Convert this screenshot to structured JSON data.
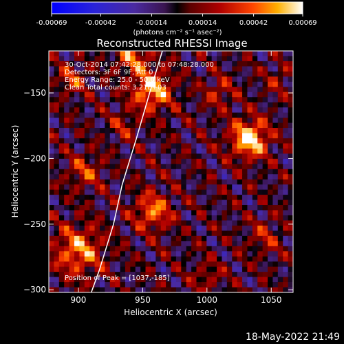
{
  "chart_data": {
    "type": "heatmap",
    "title": "Reconstructed RHESSI Image",
    "xlabel": "Heliocentric X (arcsec)",
    "ylabel": "Heliocentric Y (arcsec)",
    "xlim": [
      877,
      1067
    ],
    "ylim": [
      -302,
      -118
    ],
    "x_ticks": [
      900,
      950,
      1000,
      1050
    ],
    "y_ticks": [
      -300,
      -250,
      -200,
      -150
    ],
    "colorbar": {
      "range": [
        -0.00069,
        0.00069
      ],
      "tick_values": [
        -0.00069,
        -0.00042,
        -0.00014,
        0.00014,
        0.00042,
        0.00069
      ],
      "tick_labels": [
        "-0.00069",
        "-0.00042",
        "-0.00014",
        "0.00014",
        "0.00042",
        "0.00069"
      ],
      "unit_label": "(photons cm⁻² s⁻¹ asec⁻²)"
    },
    "annotations": [
      "30-Oct-2014 07:42:28.000 to 07:48:28.000",
      "Detectors: 3F 6F 9F, Att 0",
      "Energy Range: 25.0 - 50.0 keV",
      "Clean    Total counts: 3.21E+03"
    ],
    "peak_label": "Position of Peak = [1037,-185]",
    "peak": {
      "x": 1037,
      "y": -185
    },
    "limb": [
      [
        965.3,
        -118
      ],
      [
        955.4,
        -150
      ],
      [
        945.0,
        -185
      ],
      [
        934.0,
        -220
      ],
      [
        927.3,
        -250
      ],
      [
        916.3,
        -285
      ],
      [
        910,
        -302
      ]
    ],
    "sources": [
      {
        "x": 1033,
        "y": -185,
        "amp": 0.00069,
        "sigma": 10
      },
      {
        "x": 957,
        "y": -148,
        "amp": 0.00055,
        "sigma": 11
      },
      {
        "x": 942,
        "y": -122,
        "amp": 0.0004,
        "sigma": 9
      },
      {
        "x": 958,
        "y": -240,
        "amp": 0.00045,
        "sigma": 10
      },
      {
        "x": 900,
        "y": -270,
        "amp": 0.00048,
        "sigma": 13
      },
      {
        "x": 905,
        "y": -210,
        "amp": 0.0003,
        "sigma": 9
      },
      {
        "x": 895,
        "y": -140,
        "amp": 0.0003,
        "sigma": 8
      },
      {
        "x": 1010,
        "y": -150,
        "amp": 0.00025,
        "sigma": 8
      },
      {
        "x": 1045,
        "y": -260,
        "amp": 0.00022,
        "sigma": 9
      },
      {
        "x": 1000,
        "y": -290,
        "amp": 0.0002,
        "sigma": 8
      },
      {
        "x": 935,
        "y": -175,
        "amp": 0.00022,
        "sigma": 7
      },
      {
        "x": 1055,
        "y": -140,
        "amp": 0.00018,
        "sigma": 7
      }
    ]
  },
  "timestamp": "18-May-2022 21:49"
}
